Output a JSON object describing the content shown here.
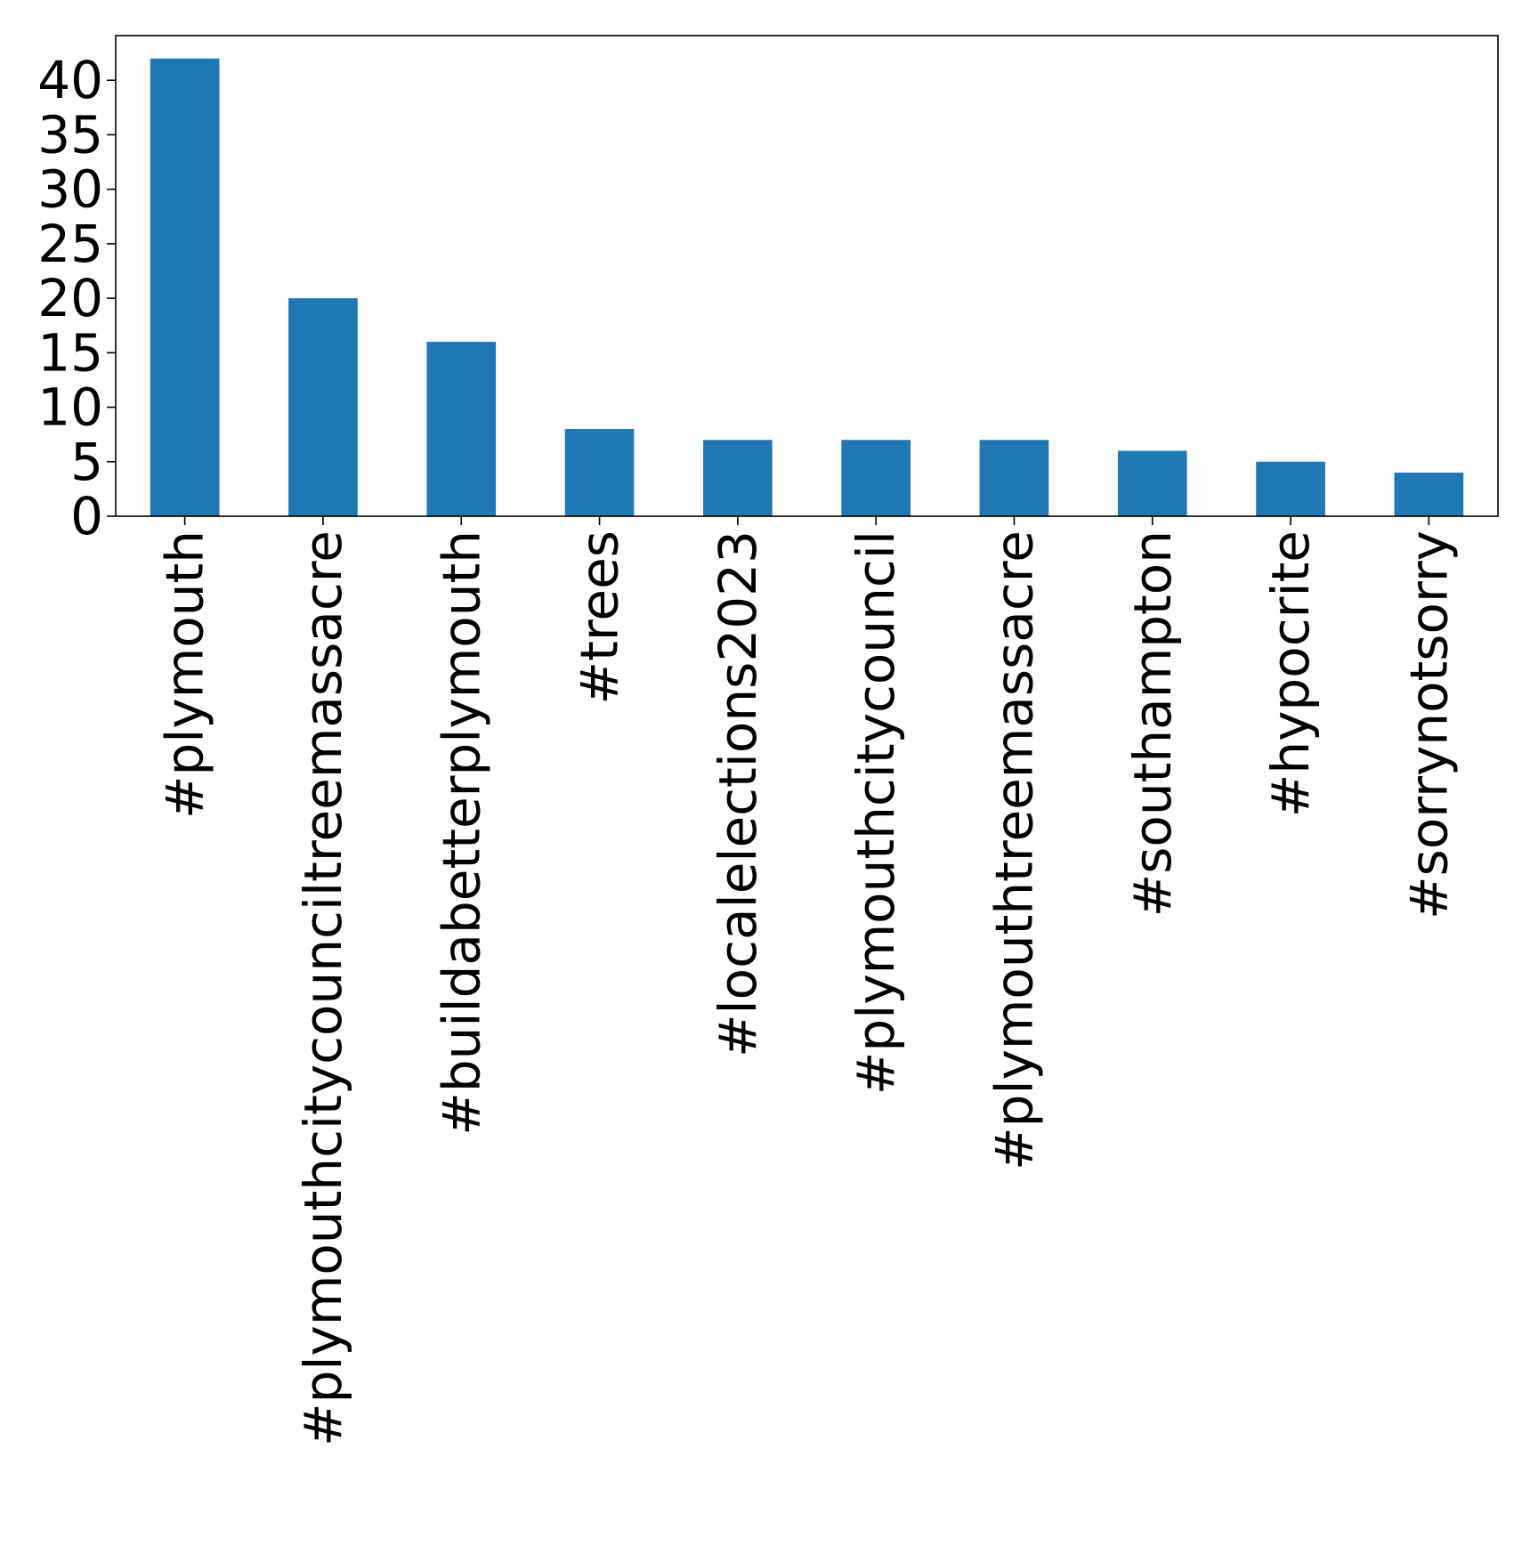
{
  "chart_data": {
    "type": "bar",
    "title": "",
    "xlabel": "",
    "ylabel": "",
    "categories": [
      "#plymouth",
      "#plymouthcitycounciltreemassacre",
      "#buildabetterplymouth",
      "#trees",
      "#localelections2023",
      "#plymouthcitycouncil",
      "#plymouthtreemassacre",
      "#southampton",
      "#hypocrite",
      "#sorrynotsorry"
    ],
    "values": [
      42,
      20,
      16,
      8,
      7,
      7,
      7,
      6,
      5,
      4
    ],
    "ylim": [
      0,
      44.1
    ],
    "yticks": [
      0,
      5,
      10,
      15,
      20,
      25,
      30,
      35,
      40
    ],
    "bar_color": "#1f77b4",
    "grid": false,
    "legend": "none"
  }
}
